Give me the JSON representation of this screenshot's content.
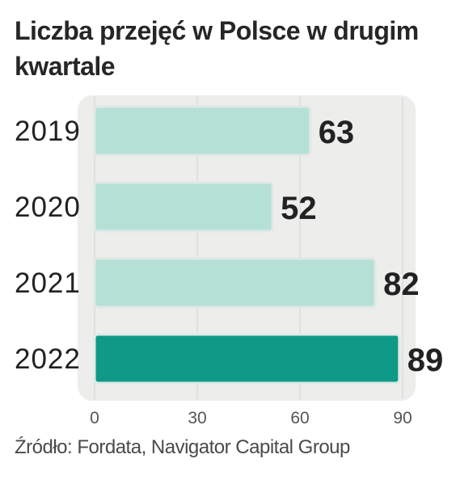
{
  "title": "Liczba przejęć w Polsce w drugim kwartale",
  "source": "Źródło: Fordata, Navigator Capital Group",
  "colors": {
    "bar": "#b5e0d5",
    "bar_highlight": "#0e9a87",
    "bar_border": "#dfe9e5",
    "panel": "#ededec",
    "grid": "#d2d2d0",
    "text": "#222222"
  },
  "chart_data": {
    "type": "bar",
    "orientation": "horizontal",
    "title": "Liczba przejęć w Polsce w drugim kwartale",
    "categories": [
      "2019",
      "2020",
      "2021",
      "2022"
    ],
    "values": [
      63,
      52,
      82,
      89
    ],
    "data_labels": [
      "63",
      "52",
      "82",
      "89"
    ],
    "highlight_index": 3,
    "xlim": [
      0,
      90
    ],
    "x_ticks": [
      0,
      30,
      60,
      90
    ],
    "x_tick_labels": [
      "0",
      "30",
      "60",
      "90"
    ],
    "grid": true,
    "legend": "none"
  }
}
